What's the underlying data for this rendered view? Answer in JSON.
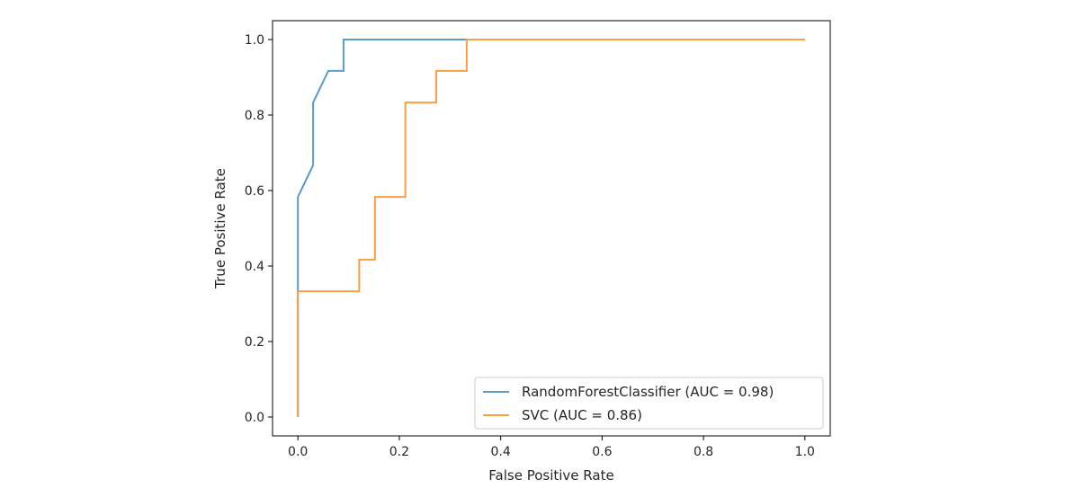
{
  "chart_data": {
    "type": "line",
    "xlabel": "False Positive Rate",
    "ylabel": "True Positive Rate",
    "xlim": [
      -0.05,
      1.05
    ],
    "ylim": [
      -0.05,
      1.05
    ],
    "x_ticks": [
      0.0,
      0.2,
      0.4,
      0.6,
      0.8,
      1.0
    ],
    "y_ticks": [
      0.0,
      0.2,
      0.4,
      0.6,
      0.8,
      1.0
    ],
    "x_tick_labels": [
      "0.0",
      "0.2",
      "0.4",
      "0.6",
      "0.8",
      "1.0"
    ],
    "y_tick_labels": [
      "0.0",
      "0.2",
      "0.4",
      "0.6",
      "0.8",
      "1.0"
    ],
    "grid": false,
    "legend_position": "bottom-right",
    "series": [
      {
        "name": "RandomForestClassifier (AUC = 0.98)",
        "color": "#5b9bc9",
        "x": [
          0.0,
          0.0,
          0.0,
          0.03,
          0.03,
          0.06,
          0.09,
          0.09,
          1.0
        ],
        "y": [
          0.0,
          0.333,
          0.583,
          0.667,
          0.833,
          0.917,
          0.917,
          1.0,
          1.0
        ]
      },
      {
        "name": "SVC (AUC = 0.86)",
        "color": "#f5a043",
        "x": [
          0.0,
          0.0,
          0.121,
          0.121,
          0.152,
          0.152,
          0.212,
          0.212,
          0.273,
          0.273,
          0.333,
          0.333,
          1.0
        ],
        "y": [
          0.0,
          0.333,
          0.333,
          0.417,
          0.417,
          0.583,
          0.583,
          0.833,
          0.833,
          0.917,
          0.917,
          1.0,
          1.0
        ]
      }
    ]
  }
}
